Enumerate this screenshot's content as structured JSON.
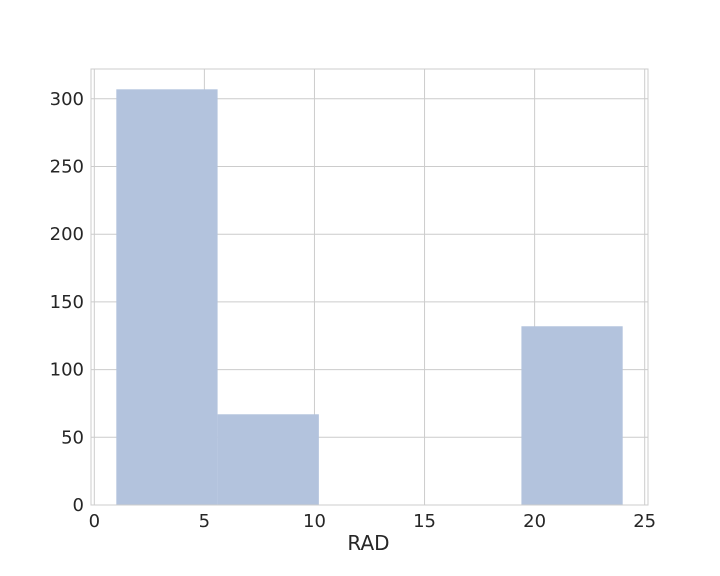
{
  "chart_data": {
    "type": "bar",
    "title": "",
    "xlabel": "RAD",
    "ylabel": "",
    "xlim": [
      -0.15,
      25.15
    ],
    "ylim": [
      0,
      322
    ],
    "xticks": [
      0,
      5,
      10,
      15,
      20,
      25
    ],
    "yticks": [
      0,
      50,
      100,
      150,
      200,
      250,
      300
    ],
    "bins": [
      {
        "x0": 1.0,
        "x1": 5.6,
        "value": 307
      },
      {
        "x0": 5.6,
        "x1": 10.2,
        "value": 67
      },
      {
        "x0": 10.2,
        "x1": 14.8,
        "value": 0
      },
      {
        "x0": 14.8,
        "x1": 19.4,
        "value": 0
      },
      {
        "x0": 19.4,
        "x1": 24.0,
        "value": 132
      }
    ],
    "grid": true,
    "colors": {
      "bar": "#b3c3dd",
      "grid": "#cccccc",
      "frame": "#cccccc",
      "text": "#262626"
    }
  }
}
